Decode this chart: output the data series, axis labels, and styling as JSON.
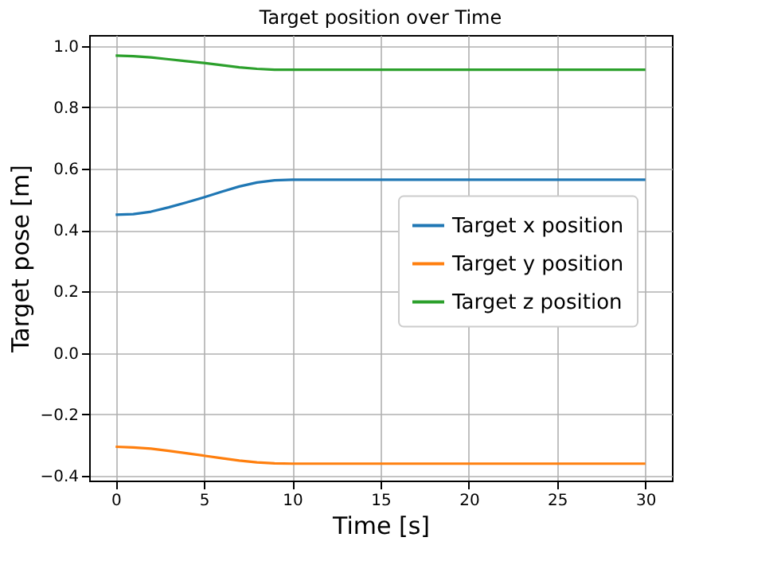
{
  "chart_data": {
    "type": "line",
    "title": "Target position over Time",
    "xlabel": "Time [s]",
    "ylabel": "Target pose [m]",
    "x": [
      0,
      1,
      2,
      3,
      4,
      5,
      6,
      7,
      8,
      9,
      10,
      15,
      20,
      25,
      30
    ],
    "series": [
      {
        "name": "Target x position",
        "color": "#1f77b4",
        "values": [
          0.45,
          0.452,
          0.46,
          0.474,
          0.49,
          0.507,
          0.525,
          0.542,
          0.555,
          0.562,
          0.564,
          0.564,
          0.564,
          0.564,
          0.564
        ]
      },
      {
        "name": "Target y position",
        "color": "#ff7f0e",
        "values": [
          -0.305,
          -0.307,
          -0.311,
          -0.318,
          -0.326,
          -0.334,
          -0.342,
          -0.35,
          -0.356,
          -0.359,
          -0.36,
          -0.36,
          -0.36,
          -0.36,
          -0.36
        ]
      },
      {
        "name": "Target z position",
        "color": "#2ca02c",
        "values": [
          0.968,
          0.966,
          0.962,
          0.956,
          0.95,
          0.944,
          0.937,
          0.93,
          0.925,
          0.922,
          0.922,
          0.922,
          0.922,
          0.922,
          0.922
        ]
      }
    ],
    "xlim": [
      -1.5,
      31.5
    ],
    "xticks": [
      0,
      5,
      10,
      15,
      20,
      25,
      30
    ],
    "ylim": [
      -0.415,
      1.035
    ],
    "yticks": [
      {
        "value": -0.4,
        "label": "−0.4"
      },
      {
        "value": -0.2,
        "label": "−0.2"
      },
      {
        "value": 0.0,
        "label": "0.0"
      },
      {
        "value": 0.2,
        "label": "0.2"
      },
      {
        "value": 0.4,
        "label": "0.4"
      },
      {
        "value": 0.6,
        "label": "0.6"
      },
      {
        "value": 0.8,
        "label": "0.8"
      },
      {
        "value": 1.0,
        "label": "1.0"
      }
    ],
    "grid": true,
    "legend": "right",
    "marker": "none",
    "line_style": "solid"
  }
}
